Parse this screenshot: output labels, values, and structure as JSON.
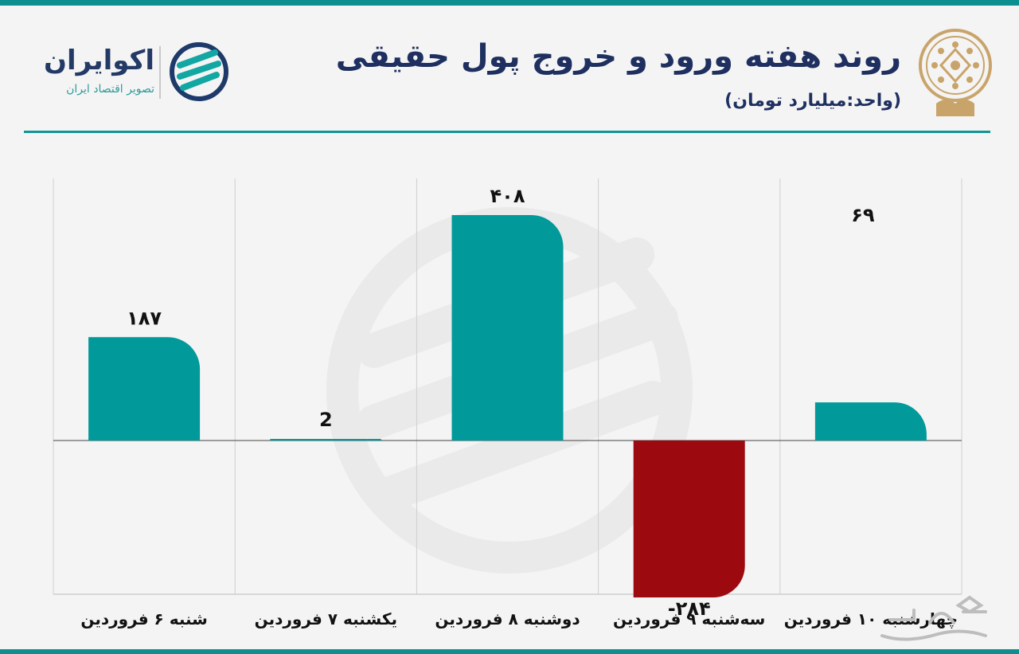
{
  "header": {
    "title": "روند هفته ورود و خروج پول حقیقی",
    "subtitle": "(واحد:میلیارد تومان)"
  },
  "brand": {
    "name": "اکوایران",
    "tagline": "تصویر اقتصاد ایران",
    "logo_icon": "ecoiran-logo-icon",
    "emblem_icon": "stock-exchange-emblem-icon"
  },
  "colors": {
    "teal": "#01999a",
    "red": "#9c0a10",
    "navy": "#1f3060"
  },
  "chart_data": {
    "type": "bar",
    "categories": [
      "شنبه ۶ فروردین",
      "یکشنبه ۷ فروردین",
      "دوشنبه ۸ فروردین",
      "سه‌شنبه ۹ فروردین",
      "چهارشنبه ۱۰ فروردین"
    ],
    "values": [
      187,
      2,
      408,
      -284,
      69
    ],
    "data_labels": [
      "۱۸۷",
      "2",
      "۴۰۸",
      "-۲۸۴",
      "۶۹"
    ],
    "title": "روند هفته ورود و خروج پول حقیقی",
    "ylabel": "(واحد:میلیارد تومان)",
    "ylim": [
      -300,
      500
    ],
    "grid": "vertical",
    "positive_color": "#01999a",
    "negative_color": "#9c0a10"
  }
}
